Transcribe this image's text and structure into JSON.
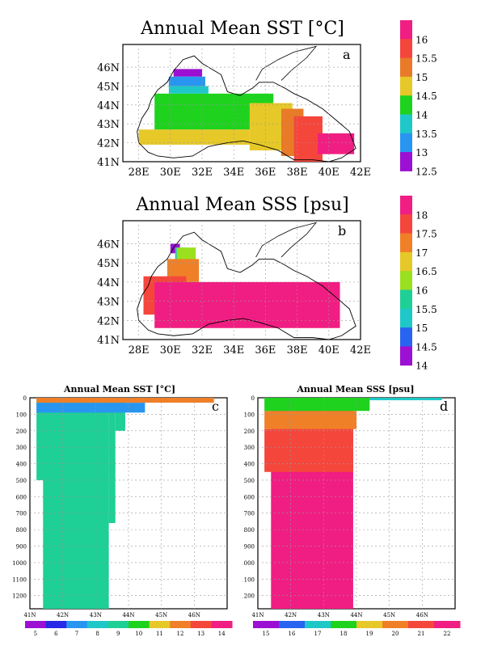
{
  "chart_data": [
    {
      "id": "a",
      "type": "heatmap",
      "title": "Annual Mean SST [°C]",
      "panel_label": "a",
      "x_ticks": [
        "28E",
        "30E",
        "32E",
        "34E",
        "36E",
        "38E",
        "40E",
        "42E"
      ],
      "y_ticks": [
        "41N",
        "42N",
        "43N",
        "44N",
        "45N",
        "46N"
      ],
      "xlim": [
        27,
        42
      ],
      "ylim": [
        41,
        47.2
      ],
      "colorbar": {
        "labels": [
          "16",
          "15.5",
          "15",
          "14.5",
          "14",
          "13.5",
          "13",
          "12.5"
        ],
        "colors": [
          "#f01e82",
          "#f5463c",
          "#e87a28",
          "#e6c828",
          "#1ed21e",
          "#1ec8c8",
          "#2896f0",
          "#9b10d2"
        ]
      },
      "fields": [
        {
          "x": [
            30.2,
            32.0
          ],
          "y": [
            45.5,
            45.9
          ],
          "value": 12.5
        },
        {
          "x": [
            29.9,
            32.2
          ],
          "y": [
            45.0,
            45.5
          ],
          "value": 13.0
        },
        {
          "x": [
            29.9,
            32.4
          ],
          "y": [
            44.6,
            45.0
          ],
          "value": 13.5
        },
        {
          "x": [
            29.0,
            36.5
          ],
          "y": [
            42.7,
            44.6
          ],
          "value": 14.0
        },
        {
          "x": [
            28.0,
            35.0
          ],
          "y": [
            41.9,
            42.7
          ],
          "value": 14.5
        },
        {
          "x": [
            35.0,
            37.7
          ],
          "y": [
            41.6,
            44.1
          ],
          "value": 14.5
        },
        {
          "x": [
            37.0,
            38.4
          ],
          "y": [
            41.3,
            43.8
          ],
          "value": 15.0
        },
        {
          "x": [
            37.8,
            39.6
          ],
          "y": [
            41.0,
            43.4
          ],
          "value": 15.5
        },
        {
          "x": [
            39.3,
            41.6
          ],
          "y": [
            41.4,
            42.5
          ],
          "value": 16.0
        }
      ]
    },
    {
      "id": "b",
      "type": "heatmap",
      "title": "Annual Mean SSS [psu]",
      "panel_label": "b",
      "x_ticks": [
        "28E",
        "30E",
        "32E",
        "34E",
        "36E",
        "38E",
        "40E",
        "42E"
      ],
      "y_ticks": [
        "41N",
        "42N",
        "43N",
        "44N",
        "45N",
        "46N"
      ],
      "xlim": [
        27,
        42
      ],
      "ylim": [
        41,
        47.2
      ],
      "colorbar": {
        "labels": [
          "18",
          "17.5",
          "17",
          "16.5",
          "16",
          "15.5",
          "15",
          "14.5",
          "14"
        ],
        "colors": [
          "#f01e82",
          "#f5463c",
          "#ef8028",
          "#e6c828",
          "#9be01e",
          "#1ecf96",
          "#1ec8c8",
          "#2864f0",
          "#9b10d2"
        ]
      },
      "fields": [
        {
          "x": [
            30.0,
            30.6
          ],
          "y": [
            45.5,
            46.0
          ],
          "value": 14.0
        },
        {
          "x": [
            30.3,
            31.0
          ],
          "y": [
            45.0,
            45.8
          ],
          "value": 15.0
        },
        {
          "x": [
            30.4,
            31.6
          ],
          "y": [
            44.6,
            45.8
          ],
          "value": 16.0
        },
        {
          "x": [
            29.8,
            31.8
          ],
          "y": [
            44.0,
            45.2
          ],
          "value": 17.0
        },
        {
          "x": [
            28.3,
            31.0
          ],
          "y": [
            42.3,
            44.3
          ],
          "value": 17.5
        },
        {
          "x": [
            29.0,
            40.7
          ],
          "y": [
            41.6,
            44.0
          ],
          "value": 18.0
        }
      ]
    },
    {
      "id": "c",
      "type": "heatmap",
      "title": "Annual Mean SST [°C]",
      "panel_label": "c",
      "x_ticks": [
        "41N",
        "42N",
        "43N",
        "44N",
        "45N",
        "46N"
      ],
      "y_ticks": [
        "0",
        "100",
        "200",
        "300",
        "400",
        "500",
        "600",
        "700",
        "800",
        "900",
        "1000",
        "1100",
        "1200"
      ],
      "ylim": [
        0,
        1280
      ],
      "colorbar": {
        "labels": [
          "5",
          "6",
          "7",
          "8",
          "9",
          "10",
          "11",
          "12",
          "13",
          "14"
        ],
        "colors": [
          "#9b10d2",
          "#2828e6",
          "#2896f0",
          "#1ec8c8",
          "#1ecf96",
          "#1ed21e",
          "#e6c828",
          "#ef8028",
          "#f5463c",
          "#f01e82"
        ]
      },
      "fields": [
        {
          "lat": [
            41.2,
            42.0
          ],
          "depth": [
            0,
            500
          ],
          "value": 9.0
        },
        {
          "lat": [
            41.4,
            43.4
          ],
          "depth": [
            0,
            1280
          ],
          "value": 9.0
        },
        {
          "lat": [
            43.4,
            43.6
          ],
          "depth": [
            0,
            760
          ],
          "value": 9.0
        },
        {
          "lat": [
            43.6,
            43.9
          ],
          "depth": [
            0,
            200
          ],
          "value": 9.0
        },
        {
          "lat": [
            41.2,
            44.5
          ],
          "depth": [
            30,
            90
          ],
          "value": 7.0
        },
        {
          "lat": [
            41.2,
            46.6
          ],
          "depth": [
            0,
            30
          ],
          "value": 12.0
        }
      ]
    },
    {
      "id": "d",
      "type": "heatmap",
      "title": "Annual Mean SSS [psu]",
      "panel_label": "d",
      "x_ticks": [
        "41N",
        "42N",
        "43N",
        "44N",
        "45N",
        "46N"
      ],
      "y_ticks": [
        "0",
        "100",
        "200",
        "300",
        "400",
        "500",
        "600",
        "700",
        "800",
        "900",
        "1000",
        "1100",
        "1200"
      ],
      "ylim": [
        0,
        1280
      ],
      "colorbar": {
        "labels": [
          "15",
          "16",
          "17",
          "18",
          "19",
          "20",
          "21",
          "22"
        ],
        "colors": [
          "#9b10d2",
          "#2864f0",
          "#1ec8c8",
          "#1ed21e",
          "#e6c828",
          "#ef8028",
          "#f5463c",
          "#f01e82"
        ]
      },
      "fields": [
        {
          "lat": [
            41.4,
            43.9
          ],
          "depth": [
            0,
            1280
          ],
          "value": 22.0
        },
        {
          "lat": [
            41.2,
            43.9
          ],
          "depth": [
            190,
            450
          ],
          "value": 21.0
        },
        {
          "lat": [
            41.2,
            44.0
          ],
          "depth": [
            80,
            190
          ],
          "value": 20.0
        },
        {
          "lat": [
            41.2,
            44.4
          ],
          "depth": [
            0,
            80
          ],
          "value": 18.0
        },
        {
          "lat": [
            44.4,
            46.6
          ],
          "depth": [
            0,
            15
          ],
          "value": 17.0
        }
      ]
    }
  ]
}
